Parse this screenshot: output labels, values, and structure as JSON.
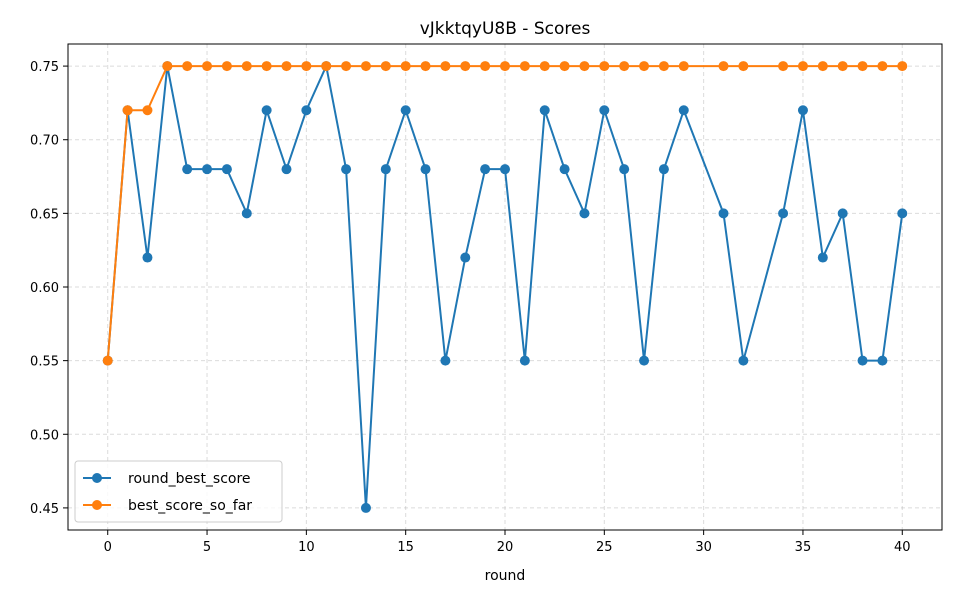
{
  "chart_data": {
    "type": "line",
    "title": "vJkktqyU8B - Scores",
    "xlabel": "round",
    "ylabel": "",
    "xlim": [
      -2,
      42
    ],
    "ylim": [
      0.435,
      0.765
    ],
    "x_ticks": [
      0,
      5,
      10,
      15,
      20,
      25,
      30,
      35,
      40
    ],
    "y_ticks": [
      0.45,
      0.5,
      0.55,
      0.6,
      0.65,
      0.7,
      0.75
    ],
    "grid": true,
    "legend_position": "lower-left",
    "series": [
      {
        "name": "round_best_score",
        "color": "#1f77b4",
        "x": [
          0,
          1,
          2,
          3,
          4,
          5,
          6,
          7,
          8,
          9,
          10,
          11,
          12,
          13,
          14,
          15,
          16,
          17,
          18,
          19,
          20,
          21,
          22,
          23,
          24,
          25,
          26,
          27,
          28,
          29,
          31,
          32,
          34,
          35,
          36,
          37,
          38,
          39,
          40
        ],
        "values": [
          0.55,
          0.72,
          0.62,
          0.75,
          0.68,
          0.68,
          0.68,
          0.65,
          0.72,
          0.68,
          0.72,
          0.75,
          0.68,
          0.45,
          0.68,
          0.72,
          0.68,
          0.55,
          0.62,
          0.68,
          0.68,
          0.55,
          0.72,
          0.68,
          0.65,
          0.72,
          0.68,
          0.55,
          0.68,
          0.72,
          0.65,
          0.55,
          0.65,
          0.72,
          0.62,
          0.65,
          0.55,
          0.55,
          0.65
        ]
      },
      {
        "name": "best_score_so_far",
        "color": "#ff7f0e",
        "x": [
          0,
          1,
          2,
          3,
          4,
          5,
          6,
          7,
          8,
          9,
          10,
          11,
          12,
          13,
          14,
          15,
          16,
          17,
          18,
          19,
          20,
          21,
          22,
          23,
          24,
          25,
          26,
          27,
          28,
          29,
          31,
          32,
          34,
          35,
          36,
          37,
          38,
          39,
          40
        ],
        "values": [
          0.55,
          0.72,
          0.72,
          0.75,
          0.75,
          0.75,
          0.75,
          0.75,
          0.75,
          0.75,
          0.75,
          0.75,
          0.75,
          0.75,
          0.75,
          0.75,
          0.75,
          0.75,
          0.75,
          0.75,
          0.75,
          0.75,
          0.75,
          0.75,
          0.75,
          0.75,
          0.75,
          0.75,
          0.75,
          0.75,
          0.75,
          0.75,
          0.75,
          0.75,
          0.75,
          0.75,
          0.75,
          0.75,
          0.75
        ]
      }
    ]
  }
}
